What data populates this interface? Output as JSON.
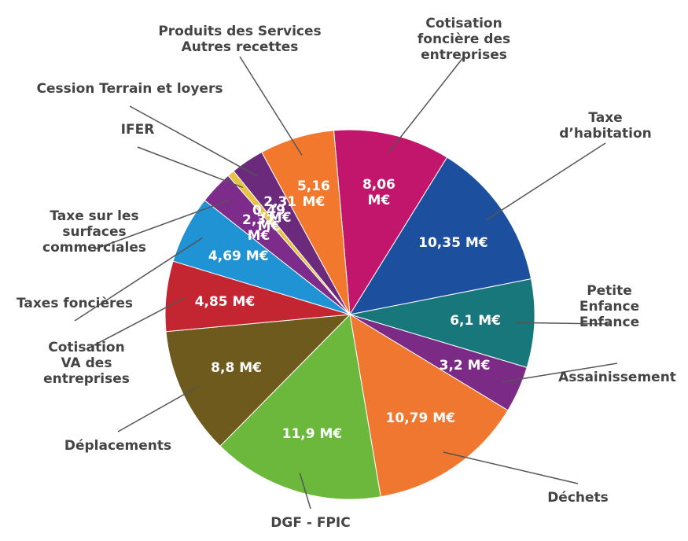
{
  "chart_data": {
    "type": "pie",
    "categories": [
      "Cotisation\nfoncière des\nentreprises",
      "Taxe\nd’habitation",
      "Petite Enfance\nEnfance",
      "Assainissement",
      "Déchets",
      "DGF - FPIC",
      "Déplacements",
      "Cotisation\nVA des\nentreprises",
      "Taxes foncières",
      "Taxe sur les\nsurfaces\ncommerciales",
      "IFER",
      "Cession Terrain et loyers",
      "Produits des Services\nAutres recettes"
    ],
    "values": [
      8.06,
      10.35,
      6.1,
      3.2,
      10.79,
      11.9,
      8.8,
      4.85,
      4.69,
      2.32,
      0.49,
      2.31,
      5.16
    ],
    "value_labels": [
      "8,06\nM€",
      "10,35 M€",
      "6,1 M€",
      "3,2 M€",
      "10,79 M€",
      "11,9 M€",
      "8,8 M€",
      "4,85 M€",
      "4,69 M€",
      "2,32\nM€",
      "0,49\nM€",
      "2,31\nM€",
      "5,16\nM€"
    ],
    "colors": [
      "#c2156c",
      "#1c4f9e",
      "#18777a",
      "#7b2a86",
      "#f0772f",
      "#6cb83c",
      "#6e5a1d",
      "#c42631",
      "#1f93d3",
      "#7d2c8c",
      "#e6c345",
      "#6b2a7c",
      "#f2782e"
    ]
  }
}
